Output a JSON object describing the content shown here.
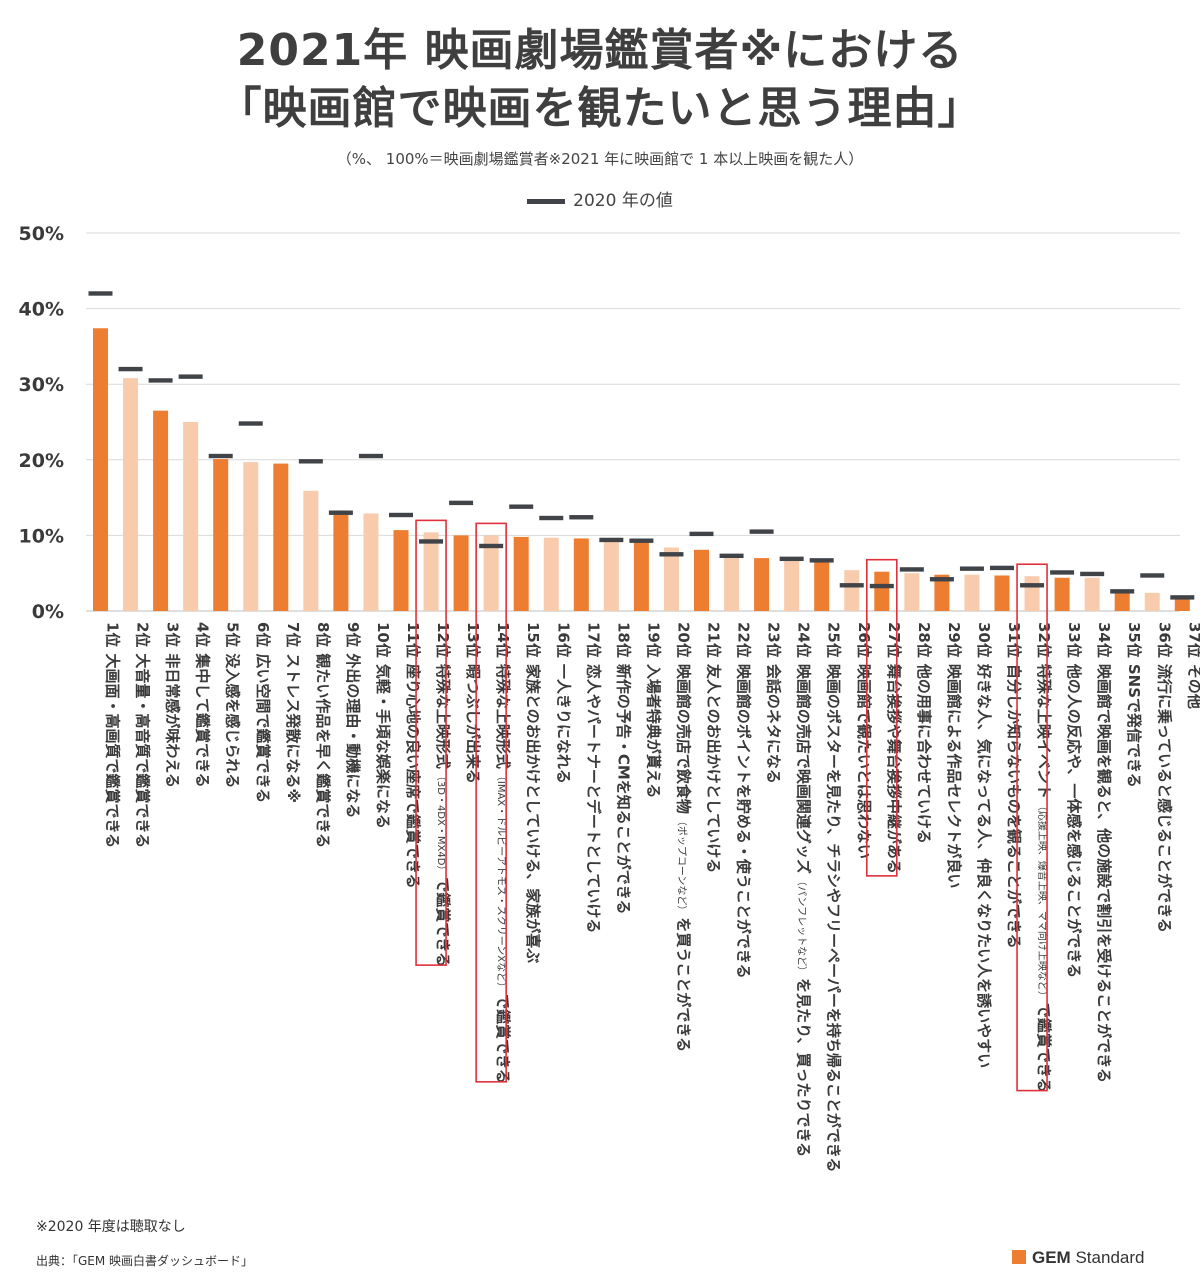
{
  "title_line1": "2021年 映画劇場鑑賞者※における",
  "title_line2": "「映画館で映画を観たいと思う理由」",
  "subtitle": "（%、 100%＝映画劇場鑑賞者※2021 年に映画館で 1 本以上映画を観た人）",
  "legend_label": "2020 年の値",
  "footnote": "※2020 年度は聴取なし",
  "source": "出典：「GEM 映画白書ダッシュボード」",
  "logo": {
    "brand": "GEM",
    "suffix": "Standard"
  },
  "colors": {
    "dark": "#ed7d31",
    "light": "#f8cbad",
    "marker": "#404448",
    "highlight": "#e0303a",
    "grid": "#d9d9d9"
  },
  "chart_data": {
    "type": "bar",
    "ylim": [
      0,
      50
    ],
    "yticks": [
      "0%",
      "10%",
      "20%",
      "30%",
      "40%",
      "50%"
    ],
    "ytick_values": [
      0,
      10,
      20,
      30,
      40,
      50
    ],
    "series": [
      {
        "name": "2021年",
        "values": [
          37.4,
          30.8,
          26.5,
          25.0,
          20.1,
          19.7,
          19.5,
          15.9,
          13.3,
          12.9,
          10.7,
          10.4,
          10.0,
          10.0,
          9.8,
          9.7,
          9.6,
          9.4,
          9.2,
          8.4,
          8.1,
          7.3,
          7.0,
          6.9,
          6.6,
          5.4,
          5.2,
          5.0,
          4.8,
          4.8,
          4.7,
          4.6,
          4.4,
          4.4,
          2.6,
          2.4,
          1.8
        ]
      },
      {
        "name": "2020 年の値",
        "values": [
          42.0,
          32.0,
          30.5,
          31.0,
          20.5,
          24.8,
          null,
          19.8,
          13.0,
          20.5,
          12.7,
          9.2,
          14.3,
          8.6,
          13.8,
          12.3,
          12.4,
          9.4,
          9.3,
          7.5,
          10.2,
          7.3,
          10.5,
          6.9,
          6.7,
          3.4,
          3.3,
          5.5,
          4.2,
          5.6,
          5.7,
          3.4,
          5.1,
          4.9,
          2.6,
          4.7,
          1.8
        ]
      }
    ],
    "shade": [
      "dark",
      "light",
      "dark",
      "light",
      "dark",
      "light",
      "dark",
      "light",
      "dark",
      "light",
      "dark",
      "light",
      "dark",
      "light",
      "dark",
      "light",
      "dark",
      "light",
      "dark",
      "light",
      "dark",
      "light",
      "dark",
      "light",
      "dark",
      "light",
      "dark",
      "light",
      "dark",
      "light",
      "dark",
      "light",
      "dark",
      "light",
      "dark",
      "light",
      "dark"
    ],
    "highlighted": [
      12,
      14,
      27,
      32
    ],
    "categories": [
      {
        "rank": "1位",
        "label": "大画面・高画質で鑑賞できる"
      },
      {
        "rank": "2位",
        "label": "大音量・高音質で鑑賞できる"
      },
      {
        "rank": "3位",
        "label": "非日常感が味わえる"
      },
      {
        "rank": "4位",
        "label": "集中して鑑賞できる"
      },
      {
        "rank": "5位",
        "label": "没入感を感じられる"
      },
      {
        "rank": "6位",
        "label": "広い空間で鑑賞できる"
      },
      {
        "rank": "7位",
        "label": "ストレス発散になる※"
      },
      {
        "rank": "8位",
        "label": "観たい作品を早く鑑賞できる"
      },
      {
        "rank": "9位",
        "label": "外出の理由・動機になる"
      },
      {
        "rank": "10位",
        "label": "気軽・手頃な娯楽になる"
      },
      {
        "rank": "11位",
        "label": "座り心地の良い座席で鑑賞できる"
      },
      {
        "rank": "12位",
        "label": "特殊な上映形式",
        "small": "（3D・4DX・MX4D）",
        "tail": "で鑑賞できる"
      },
      {
        "rank": "13位",
        "label": "暇つぶしが出来る"
      },
      {
        "rank": "14位",
        "label": "特殊な上映形式",
        "small": "（IMAX・ドルビーアトモス・スクリーンXなど）",
        "tail": "で鑑賞できる"
      },
      {
        "rank": "15位",
        "label": "家族とのお出かけとしていける、家族が喜ぶ"
      },
      {
        "rank": "16位",
        "label": "一人きりになれる"
      },
      {
        "rank": "17位",
        "label": "恋人やパートナーとデートとしていける"
      },
      {
        "rank": "18位",
        "label": "新作の予告・CMを知ることができる"
      },
      {
        "rank": "19位",
        "label": "入場者特典が貰える"
      },
      {
        "rank": "20位",
        "label": "映画館の売店で飲食物",
        "small": "（ポップコーンなど）",
        "tail": "を買うことができる"
      },
      {
        "rank": "21位",
        "label": "友人とのお出かけとしていける"
      },
      {
        "rank": "22位",
        "label": "映画館のポイントを貯める・使うことができる"
      },
      {
        "rank": "23位",
        "label": "会話のネタになる"
      },
      {
        "rank": "24位",
        "label": "映画館の売店で映画関連グッズ",
        "small": "（パンフレットなど）",
        "tail": "を見たり、買ったりできる"
      },
      {
        "rank": "25位",
        "label": "映画のポスターを見たり、チラシやフリーペーパーを持ち帰ることができる"
      },
      {
        "rank": "26位",
        "label": "映画館で観たいとは思わない"
      },
      {
        "rank": "27位",
        "label": "舞台挨拶や舞台挨拶中継がある"
      },
      {
        "rank": "28位",
        "label": "他の用事に合わせていける"
      },
      {
        "rank": "29位",
        "label": "映画館による作品セレクトが良い"
      },
      {
        "rank": "30位",
        "label": "好きな人、気になってる人、仲良くなりたい人を誘いやすい"
      },
      {
        "rank": "31位",
        "label": "自分しか知らないものを観ることができる"
      },
      {
        "rank": "32位",
        "label": "特殊な上映イベント",
        "small": "（応援上映、爆音上映、ママ向け上映など）",
        "tail": "で鑑賞できる"
      },
      {
        "rank": "33位",
        "label": "他の人の反応や、一体感を感じることができる"
      },
      {
        "rank": "34位",
        "label": "映画館で映画を観ると、他の施設で割引を受けることができる"
      },
      {
        "rank": "35位",
        "label": "SNSで発信できる"
      },
      {
        "rank": "36位",
        "label": "流行に乗っていると感じることができる"
      },
      {
        "rank": "37位",
        "label": "その他"
      }
    ]
  }
}
